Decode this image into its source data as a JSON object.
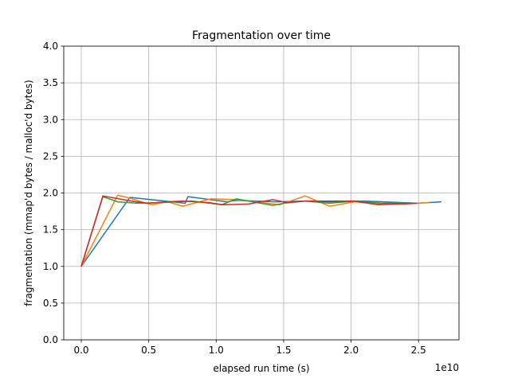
{
  "chart_data": {
    "type": "line",
    "title": "Fragmentation over time",
    "xlabel": "elapsed run time (s)",
    "ylabel": "fragmentation (mmap'd bytes / malloc'd bytes)",
    "x_offset_label": "1e10",
    "x_scale_factor": 10000000000,
    "xlim": [
      -1.3,
      28.0
    ],
    "ylim": [
      0,
      4.0
    ],
    "grid": true,
    "xticks": [
      0,
      0.5,
      1.0,
      1.5,
      2.0,
      2.5
    ],
    "xtick_labels": [
      "0.0",
      "0.5",
      "1.0",
      "1.5",
      "2.0",
      "2.5"
    ],
    "yticks": [
      0,
      0.5,
      1.0,
      1.5,
      2.0,
      2.5,
      3.0,
      3.5,
      4.0
    ],
    "ytick_labels": [
      "0.0",
      "0.5",
      "1.0",
      "1.5",
      "2.0",
      "2.5",
      "3.0",
      "3.5",
      "4.0"
    ],
    "series": [
      {
        "color": "#1f77b4",
        "x": [
          0,
          3.6,
          7.7,
          7.9,
          10.8,
          11.5,
          14.5,
          16.6,
          21.0,
          24.9,
          26.7
        ],
        "y": [
          1.0,
          1.94,
          1.86,
          1.95,
          1.88,
          1.9,
          1.88,
          1.89,
          1.89,
          1.86,
          1.88
        ]
      },
      {
        "color": "#ff7f0e",
        "x": [
          0,
          2.7,
          3.6,
          5.2,
          6.4,
          7.5,
          9.6,
          11.5,
          12.9,
          14.7,
          16.6,
          18.4,
          20.3,
          22.2,
          24.0,
          25.8
        ],
        "y": [
          1.0,
          1.97,
          1.93,
          1.84,
          1.88,
          1.82,
          1.92,
          1.91,
          1.88,
          1.84,
          1.96,
          1.82,
          1.88,
          1.85,
          1.85,
          1.87
        ]
      },
      {
        "color": "#2ca02c",
        "x": [
          0,
          1.6,
          2.7,
          4.2,
          5.9,
          8.2,
          10.4,
          11.5,
          14.2,
          15.0,
          16.6,
          18.4,
          20.3,
          22.2,
          24.3
        ],
        "y": [
          1.0,
          1.95,
          1.88,
          1.86,
          1.87,
          1.89,
          1.84,
          1.92,
          1.83,
          1.86,
          1.89,
          1.86,
          1.89,
          1.86,
          1.86
        ]
      },
      {
        "color": "#d62728",
        "x": [
          0,
          1.6,
          3.7,
          4.9,
          6.4,
          7.5,
          9.4,
          10.5,
          12.4,
          14.2,
          15.2,
          16.6,
          18.4,
          20.2,
          22.0,
          24.9
        ],
        "y": [
          1.0,
          1.96,
          1.89,
          1.86,
          1.88,
          1.89,
          1.87,
          1.84,
          1.85,
          1.91,
          1.87,
          1.89,
          1.88,
          1.89,
          1.84,
          1.86
        ]
      }
    ]
  }
}
